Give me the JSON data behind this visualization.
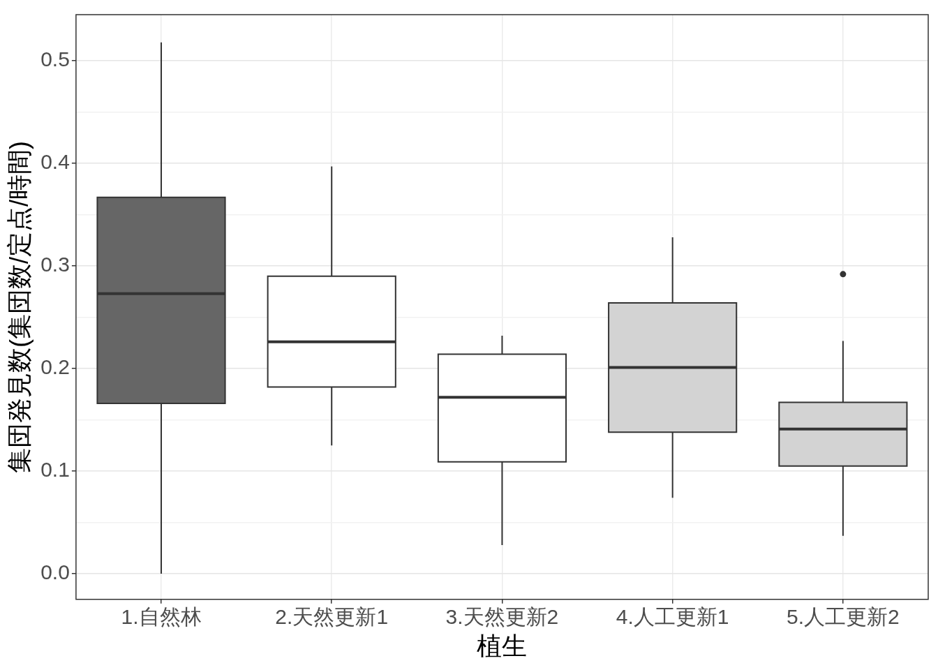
{
  "chart_data": {
    "type": "box",
    "xlabel": "植生",
    "ylabel": "集団発見数(集団数/定点/時間)",
    "categories": [
      "1.自然林",
      "2.天然更新1",
      "3.天然更新2",
      "4.人工更新1",
      "5.人工更新2"
    ],
    "colors": [
      "#666666",
      "#ffffff",
      "#ffffff",
      "#d3d3d3",
      "#d3d3d3"
    ],
    "boxes": [
      {
        "low": 0.0,
        "q1": 0.166,
        "median": 0.273,
        "q3": 0.367,
        "high": 0.518
      },
      {
        "low": 0.125,
        "q1": 0.182,
        "median": 0.226,
        "q3": 0.29,
        "high": 0.397
      },
      {
        "low": 0.028,
        "q1": 0.109,
        "median": 0.172,
        "q3": 0.214,
        "high": 0.232
      },
      {
        "low": 0.074,
        "q1": 0.138,
        "median": 0.201,
        "q3": 0.264,
        "high": 0.328
      },
      {
        "low": 0.037,
        "q1": 0.105,
        "median": 0.141,
        "q3": 0.167,
        "high": 0.227,
        "outliers": [
          0.292
        ]
      }
    ],
    "ylim": [
      -0.025,
      0.545
    ],
    "yticks": [
      {
        "value": 0,
        "label": "0.0"
      },
      {
        "value": 0.05,
        "label": null
      },
      {
        "value": 0.1,
        "label": "0.1"
      },
      {
        "value": 0.15,
        "label": null
      },
      {
        "value": 0.2,
        "label": "0.2"
      },
      {
        "value": 0.25,
        "label": null
      },
      {
        "value": 0.3,
        "label": "0.3"
      },
      {
        "value": 0.35,
        "label": null
      },
      {
        "value": 0.4,
        "label": "0.4"
      },
      {
        "value": 0.45,
        "label": null
      },
      {
        "value": 0.5,
        "label": "0.5"
      }
    ],
    "grid": true
  }
}
